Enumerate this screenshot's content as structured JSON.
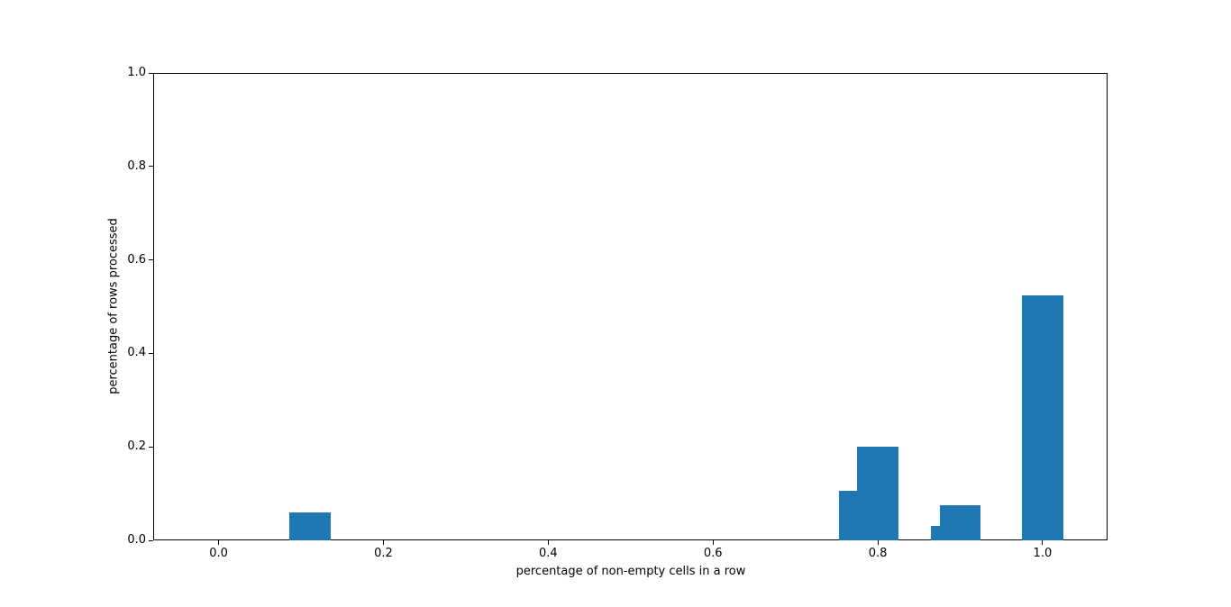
{
  "chart_data": {
    "type": "bar",
    "title": "",
    "xlabel": "percentage of non-empty cells in a row",
    "ylabel": "percentage of rows processed",
    "bar_color": "#1f77b4",
    "bar_width": 0.05,
    "x": [
      0.1111,
      0.7778,
      0.8,
      0.8889,
      0.9,
      1.0
    ],
    "values": [
      0.06,
      0.106,
      0.2,
      0.031,
      0.076,
      0.525
    ],
    "xlim": [
      -0.0783,
      1.0788
    ],
    "ylim": [
      0,
      1.0
    ],
    "xticks": [
      0.0,
      0.2,
      0.4,
      0.6,
      0.8,
      1.0
    ],
    "yticks": [
      0.0,
      0.2,
      0.4,
      0.6,
      0.8,
      1.0
    ],
    "xtick_labels": [
      "0.0",
      "0.2",
      "0.4",
      "0.6",
      "0.8",
      "1.0"
    ],
    "ytick_labels": [
      "0.0",
      "0.2",
      "0.4",
      "0.6",
      "0.8",
      "1.0"
    ],
    "grid": false,
    "legend": null,
    "spine_color": "#000000",
    "background": "#ffffff"
  }
}
